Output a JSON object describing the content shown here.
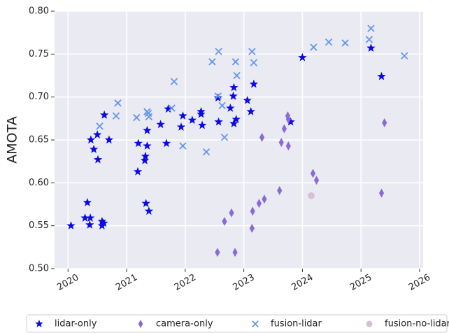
{
  "chart_data": {
    "type": "scatter",
    "ylabel": "AMOTA",
    "xlim": [
      2019.77,
      2026.06
    ],
    "ylim": [
      0.5,
      0.8
    ],
    "xticks": [
      2020,
      2021,
      2022,
      2023,
      2024,
      2025,
      2026
    ],
    "yticks": [
      {
        "value": 0.5,
        "label": "0.50"
      },
      0.55,
      {
        "value": 0.6,
        "label": "0.60"
      },
      0.65,
      {
        "value": 0.7,
        "label": "0.70"
      },
      0.75,
      {
        "value": 0.8,
        "label": "0.80"
      }
    ],
    "grid": true,
    "legend": "bottom",
    "series": [
      {
        "name": "lidar-only",
        "color": "#0a0ae6",
        "marker": "star",
        "x": [
          2020.05,
          2020.29,
          2020.33,
          2020.38,
          2020.37,
          2020.39,
          2020.44,
          2020.5,
          2020.51,
          2020.58,
          2020.58,
          2020.61,
          2020.62,
          2020.7,
          2021.19,
          2021.2,
          2021.31,
          2021.32,
          2021.33,
          2021.35,
          2021.35,
          2021.38,
          2021.58,
          2021.68,
          2021.71,
          2021.93,
          2021.96,
          2022.12,
          2022.27,
          2022.27,
          2022.29,
          2022.57,
          2022.56,
          2022.77,
          2022.82,
          2022.83,
          2022.83,
          2022.87,
          2023.06,
          2023.12,
          2023.17,
          2023.8,
          2024.0,
          2025.17,
          2025.35
        ],
        "values": [
          0.55,
          0.559,
          0.577,
          0.559,
          0.551,
          0.65,
          0.639,
          0.656,
          0.627,
          0.555,
          0.55,
          0.553,
          0.679,
          0.65,
          0.613,
          0.646,
          0.626,
          0.631,
          0.576,
          0.661,
          0.643,
          0.567,
          0.668,
          0.646,
          0.686,
          0.665,
          0.678,
          0.673,
          0.683,
          0.68,
          0.667,
          0.671,
          0.699,
          0.687,
          0.701,
          0.711,
          0.669,
          0.674,
          0.696,
          0.683,
          0.715,
          0.671,
          0.746,
          0.757,
          0.724
        ]
      },
      {
        "name": "camera-only",
        "color": "#8a6ad8",
        "marker": "diamond",
        "x": [
          2022.55,
          2022.67,
          2022.79,
          2022.85,
          2023.14,
          2023.15,
          2023.26,
          2023.35,
          2023.31,
          2023.61,
          2023.64,
          2023.69,
          2023.75,
          2023.76,
          2023.76,
          2024.18,
          2024.24,
          2025.35,
          2025.4
        ],
        "values": [
          0.519,
          0.555,
          0.565,
          0.519,
          0.547,
          0.567,
          0.576,
          0.581,
          0.653,
          0.591,
          0.647,
          0.663,
          0.678,
          0.674,
          0.643,
          0.611,
          0.603,
          0.588,
          0.67
        ]
      },
      {
        "name": "fusion-lidar",
        "color": "#6495ed",
        "marker": "x",
        "x": [
          2020.85,
          2020.82,
          2020.54,
          2021.17,
          2021.35,
          2021.37,
          2021.38,
          2021.77,
          2021.81,
          2021.96,
          2022.36,
          2022.46,
          2022.57,
          2022.56,
          2022.63,
          2022.67,
          2022.86,
          2022.88,
          2023.14,
          2023.17,
          2024.19,
          2024.45,
          2024.73,
          2025.14,
          2025.17,
          2025.74
        ],
        "values": [
          0.693,
          0.678,
          0.666,
          0.676,
          0.683,
          0.681,
          0.677,
          0.687,
          0.718,
          0.643,
          0.636,
          0.741,
          0.753,
          0.701,
          0.69,
          0.653,
          0.741,
          0.725,
          0.753,
          0.74,
          0.758,
          0.764,
          0.763,
          0.767,
          0.78,
          0.748
        ]
      },
      {
        "name": "fusion-no-lidar",
        "color": "#d8bfd8",
        "marker": "circle",
        "x": [
          2024.15
        ],
        "values": [
          0.585
        ]
      }
    ]
  }
}
